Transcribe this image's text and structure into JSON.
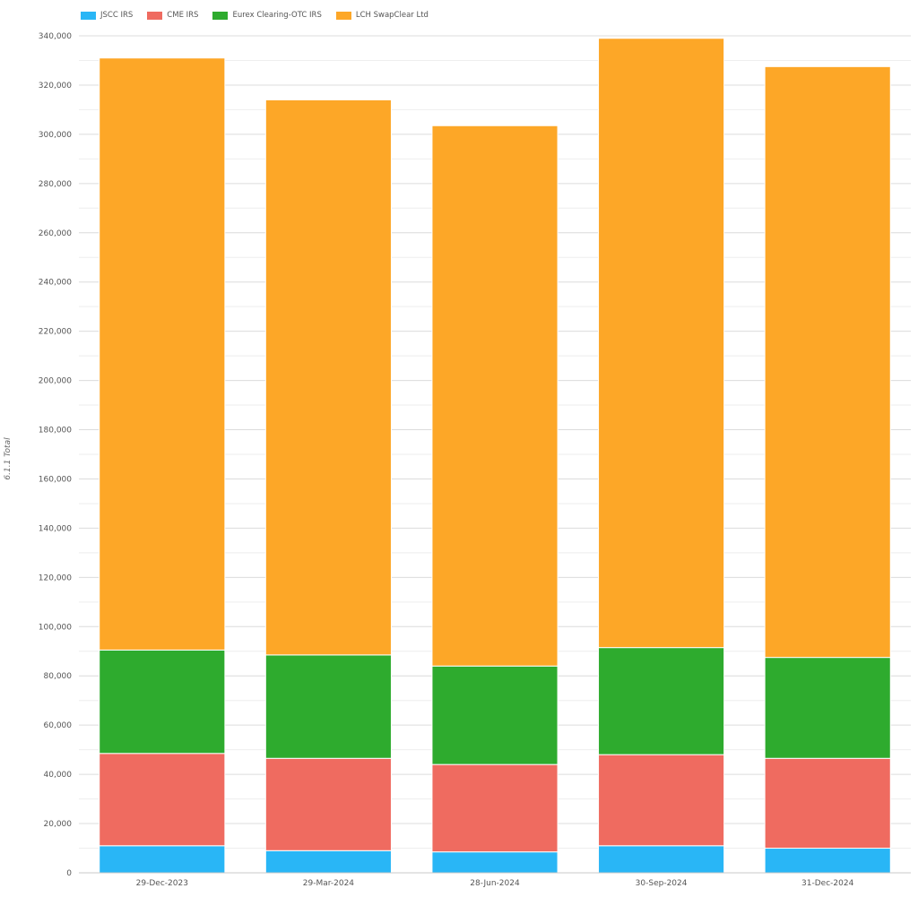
{
  "chart_data": {
    "type": "bar",
    "stacked": true,
    "ylabel": "6.1.1 Total",
    "xlabel": "",
    "ylim": [
      0,
      340000
    ],
    "ytick_step": 20000,
    "grid": true,
    "legend_position": "top-left",
    "categories": [
      "29-Dec-2023",
      "29-Mar-2024",
      "28-Jun-2024",
      "30-Sep-2024",
      "31-Dec-2024"
    ],
    "series": [
      {
        "name": "JSCC IRS",
        "color": "#29b6f6",
        "values": [
          11000,
          9000,
          8500,
          11000,
          10000
        ]
      },
      {
        "name": "CME IRS",
        "color": "#ef6b60",
        "values": [
          37500,
          37500,
          35500,
          37000,
          36500
        ]
      },
      {
        "name": "Eurex Clearing-OTC IRS",
        "color": "#2eab2e",
        "values": [
          42000,
          42000,
          40000,
          43500,
          41000
        ]
      },
      {
        "name": "LCH SwapClear Ltd",
        "color": "#fda727",
        "values": [
          240500,
          225500,
          219500,
          247500,
          240000
        ]
      }
    ]
  }
}
